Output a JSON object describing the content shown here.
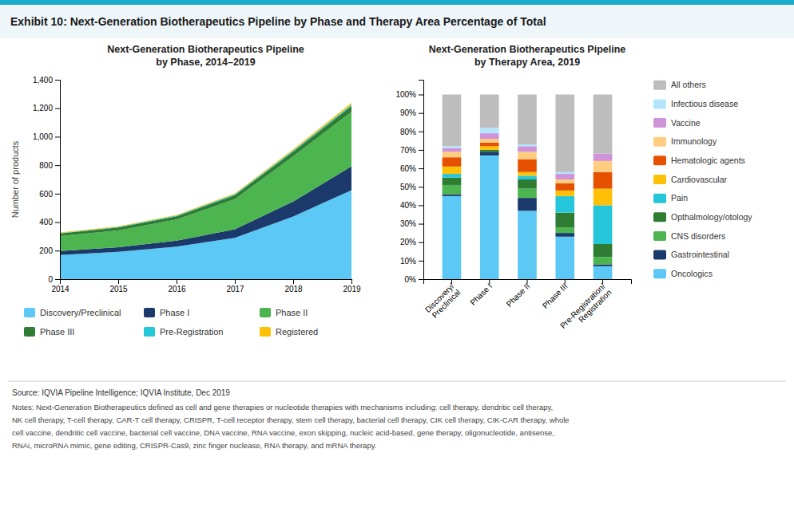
{
  "title": "Exhibit 10: Next-Generation Biotherapeutics Pipeline by Phase and Therapy Area Percentage of Total",
  "annotations": [
    "Source: IQVIA Pipeline Intelligence; IQVIA Institute, Dec 2019",
    "Notes: Next-Generation Biotherapeutics defined as cell and gene therapies or nucleotide therapies with mechanisms including: cell therapy, dendritic cell therapy,",
    "NK cell therapy, T-cell therapy, CAR-T cell therapy, CRISPR, T-cell receptor therapy, stem cell therapy, bacterial cell therapy, CIK cell therapy, CIK-CAR therapy, whole",
    "cell vaccine, dendritic cell vaccine, bacterial cell vaccine, DNA vaccine, RNA vaccine, exon skipping, nucleic acid-based, gene therapy, oligonucleotide, antisense,",
    "RNAi, microRNA mimic, gene editing, CRISPR-Cas9, zinc finger nuclease, RNA therapy, and mRNA therapy."
  ],
  "chart_data": [
    {
      "type": "area",
      "stacked": true,
      "title": "Next-Generation Biotherapeutics Pipeline\nby Phase, 2014–2019",
      "y_label": "Number of products",
      "x": [
        2014,
        2015,
        2016,
        2017,
        2018,
        2019
      ],
      "xlim": [
        2014,
        2019
      ],
      "xticks": [
        2014,
        2015,
        2016,
        2017,
        2018,
        2019
      ],
      "ylim": [
        0,
        1400
      ],
      "yticks": [
        0,
        200,
        400,
        600,
        800,
        {
          "value": 1000,
          "label": "1,000"
        },
        {
          "value": 1200,
          "label": "1,200"
        },
        {
          "value": 1400,
          "label": "1,400"
        }
      ],
      "grid": false,
      "legend": "bottom",
      "series": [
        {
          "name": "Discovery/Preclinical",
          "color": "#5BC8F5",
          "values": [
            170,
            192,
            228,
            290,
            440,
            625
          ]
        },
        {
          "name": "Phase I",
          "color": "#1B3A6B",
          "values": [
            28,
            32,
            42,
            60,
            105,
            168
          ]
        },
        {
          "name": "Phase II",
          "color": "#4DB550",
          "values": [
            105,
            118,
            148,
            212,
            318,
            382
          ]
        },
        {
          "name": "Phase III",
          "color": "#2E7D32",
          "values": [
            17,
            20,
            23,
            27,
            32,
            40
          ]
        },
        {
          "name": "Pre-Registration",
          "color": "#26C6DA",
          "values": [
            4,
            5,
            6,
            7,
            8,
            10
          ]
        },
        {
          "name": "Registered",
          "color": "#FFC107",
          "values": [
            3,
            4,
            4,
            6,
            8,
            12
          ]
        }
      ]
    },
    {
      "type": "bar",
      "stacked": true,
      "title": "Next-Generation Biotherapeutics Pipeline\nby Therapy Area, 2019",
      "categories": [
        "Discovery/\nPreclinical",
        "Phase I",
        "Phase II",
        "Phase III",
        "Pre-Registration/\nRegistration"
      ],
      "ylim": [
        0,
        108
      ],
      "yticks": [
        {
          "value": 0,
          "label": "0%"
        },
        {
          "value": 10,
          "label": "10%"
        },
        {
          "value": 20,
          "label": "20%"
        },
        {
          "value": 30,
          "label": "30%"
        },
        {
          "value": 40,
          "label": "40%"
        },
        {
          "value": 50,
          "label": "50%"
        },
        {
          "value": 60,
          "label": "60%"
        },
        {
          "value": 70,
          "label": "70%"
        },
        {
          "value": 80,
          "label": "80%"
        },
        {
          "value": 90,
          "label": "90%"
        },
        {
          "value": 100,
          "label": "100%"
        }
      ],
      "grid": false,
      "legend": "right",
      "series": [
        {
          "name": "Oncologics",
          "color": "#5BC8F5",
          "values": [
            45,
            67,
            37,
            23,
            7
          ]
        },
        {
          "name": "Gastrointestinal",
          "color": "#1B3A6B",
          "values": [
            1,
            2,
            7,
            2,
            1
          ]
        },
        {
          "name": "CNS disorders",
          "color": "#4DB550",
          "values": [
            5,
            0,
            5,
            3,
            4
          ]
        },
        {
          "name": "Opthalmology/otology",
          "color": "#2E7D32",
          "values": [
            4,
            1,
            5,
            8,
            7
          ]
        },
        {
          "name": "Pain",
          "color": "#26C6DA",
          "values": [
            2,
            0,
            2,
            9,
            21
          ]
        },
        {
          "name": "Cardiovascular",
          "color": "#FFC107",
          "values": [
            4,
            2,
            2,
            3,
            9
          ]
        },
        {
          "name": "Hematologic agents",
          "color": "#E65100",
          "values": [
            5,
            2,
            7,
            4,
            9
          ]
        },
        {
          "name": "Immunology",
          "color": "#FFCC80",
          "values": [
            3,
            2,
            4,
            2,
            6
          ]
        },
        {
          "name": "Vaccine",
          "color": "#CE93D8",
          "values": [
            2,
            3,
            3,
            3,
            4
          ]
        },
        {
          "name": "Infectious disease",
          "color": "#B3E5FC",
          "values": [
            1,
            3,
            1,
            1,
            0
          ]
        },
        {
          "name": "All others",
          "color": "#BDBDBD",
          "values": [
            28,
            18,
            27,
            42,
            32
          ]
        }
      ]
    }
  ]
}
